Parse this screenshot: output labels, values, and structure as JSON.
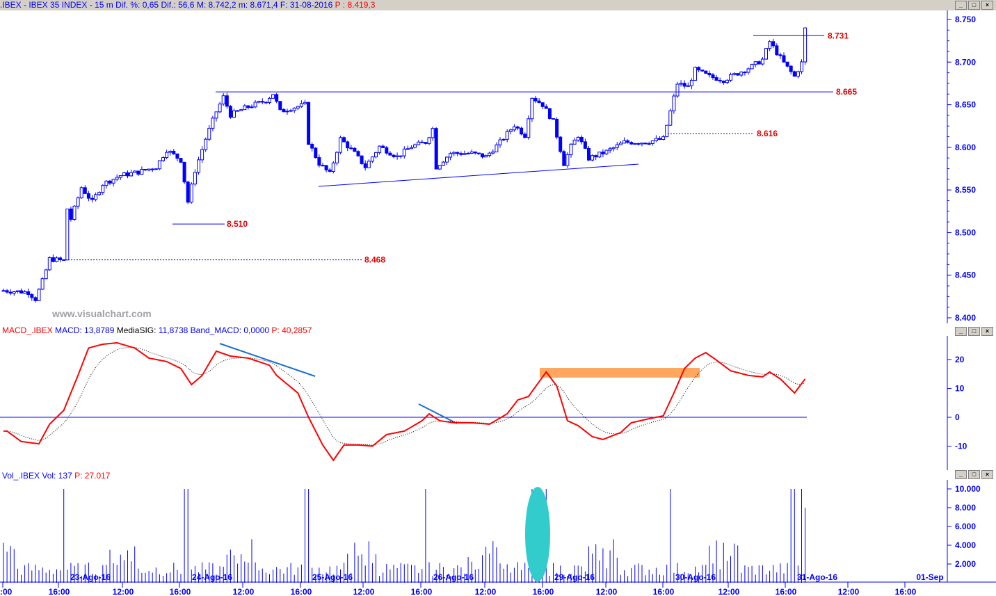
{
  "header": {
    "symbol": ".IBEX - IBEX 35 INDEX - ",
    "interval": "15 m",
    "dif_pct": "Dif. %: 0,65",
    "dif": "Dif.: 56,6",
    "max": "M: 8.742,2",
    "min": "m: 8.671,4",
    "date": "F: 31-08-2016",
    "p": "P : 8.419,3"
  },
  "macd_header": {
    "name": "MACD_.IBEX",
    "macd": "MACD: 13,8789",
    "signal_label": "MediaSIG:",
    "signal": "11,8738",
    "band": "Band_MACD: 0,0000",
    "p": "P: 40,2857"
  },
  "vol_header": {
    "name": "Vol_.IBEX",
    "vol": "Vol: 137",
    "p": "P: 27.017"
  },
  "watermark": "www.visualchart.com",
  "window_buttons": {
    "minimize": "_",
    "maximize": "□",
    "close": "×"
  },
  "colors": {
    "accent": "#0000ff",
    "macd": "#ff0000",
    "highlight_rect": "#ffa75e",
    "volume_ellipse": "#33cccc",
    "header_bg": "#d4d0c8"
  },
  "chart_data": [
    {
      "type": "candlestick",
      "title": "IBEX 35 INDEX 15 m",
      "yticks": [
        "8.750",
        "8.700",
        "8.650",
        "8.600",
        "8.550",
        "8.500",
        "8.450",
        "8.400"
      ],
      "ylim": [
        8.4,
        8.75
      ],
      "close_anchors_by_bar": [
        [
          0,
          8.432
        ],
        [
          7,
          8.43
        ],
        [
          9,
          8.422
        ],
        [
          11,
          8.443
        ],
        [
          13,
          8.469
        ],
        [
          17,
          8.467
        ],
        [
          18,
          8.528
        ],
        [
          19,
          8.516
        ],
        [
          22,
          8.553
        ],
        [
          25,
          8.536
        ],
        [
          28,
          8.557
        ],
        [
          33,
          8.567
        ],
        [
          38,
          8.571
        ],
        [
          43,
          8.577
        ],
        [
          46,
          8.597
        ],
        [
          50,
          8.585
        ],
        [
          52,
          8.536
        ],
        [
          54,
          8.573
        ],
        [
          57,
          8.61
        ],
        [
          60,
          8.642
        ],
        [
          62,
          8.659
        ],
        [
          64,
          8.638
        ],
        [
          68,
          8.646
        ],
        [
          74,
          8.655
        ],
        [
          76,
          8.663
        ],
        [
          78,
          8.642
        ],
        [
          81,
          8.646
        ],
        [
          85,
          8.65
        ],
        [
          86,
          8.606
        ],
        [
          89,
          8.581
        ],
        [
          92,
          8.569
        ],
        [
          95,
          8.61
        ],
        [
          99,
          8.593
        ],
        [
          102,
          8.577
        ],
        [
          106,
          8.601
        ],
        [
          111,
          8.589
        ],
        [
          115,
          8.601
        ],
        [
          119,
          8.606
        ],
        [
          121,
          8.622
        ],
        [
          122,
          8.577
        ],
        [
          126,
          8.593
        ],
        [
          132,
          8.593
        ],
        [
          136,
          8.589
        ],
        [
          140,
          8.606
        ],
        [
          144,
          8.626
        ],
        [
          147,
          8.614
        ],
        [
          149,
          8.659
        ],
        [
          152,
          8.65
        ],
        [
          155,
          8.63
        ],
        [
          158,
          8.581
        ],
        [
          160,
          8.601
        ],
        [
          162,
          8.614
        ],
        [
          165,
          8.587
        ],
        [
          170,
          8.595
        ],
        [
          175,
          8.606
        ],
        [
          181,
          8.606
        ],
        [
          186,
          8.61
        ],
        [
          188,
          8.642
        ],
        [
          190,
          8.675
        ],
        [
          193,
          8.671
        ],
        [
          195,
          8.691
        ],
        [
          199,
          8.683
        ],
        [
          203,
          8.679
        ],
        [
          207,
          8.687
        ],
        [
          211,
          8.695
        ],
        [
          214,
          8.703
        ],
        [
          216,
          8.724
        ],
        [
          218,
          8.711
        ],
        [
          220,
          8.699
        ],
        [
          223,
          8.683
        ],
        [
          225,
          8.699
        ],
        [
          226,
          8.739
        ]
      ],
      "levels": [
        {
          "label": "8.731",
          "value": 8.731,
          "style": "solid"
        },
        {
          "label": "8.665",
          "value": 8.665,
          "style": "solid"
        },
        {
          "label": "8.616",
          "value": 8.616,
          "style": "dotted"
        },
        {
          "label": "8.510",
          "value": 8.51,
          "style": "solid"
        },
        {
          "label": "8.468",
          "value": 8.468,
          "style": "dotted"
        }
      ]
    },
    {
      "type": "line",
      "title": "MACD",
      "yticks": [
        "20",
        "10",
        "0",
        "-10"
      ],
      "macd_anchors_by_bar": [
        [
          1,
          -4.8
        ],
        [
          5,
          -8.4
        ],
        [
          10,
          -9.2
        ],
        [
          13,
          -2.4
        ],
        [
          17,
          2.4
        ],
        [
          21,
          14.5
        ],
        [
          24,
          24
        ],
        [
          28,
          25.3
        ],
        [
          32,
          25.8
        ],
        [
          37,
          24
        ],
        [
          41,
          20.5
        ],
        [
          46,
          19.3
        ],
        [
          50,
          16.9
        ],
        [
          53,
          11.3
        ],
        [
          56,
          14.5
        ],
        [
          60,
          22.9
        ],
        [
          64,
          21.2
        ],
        [
          69,
          20.5
        ],
        [
          75,
          18
        ],
        [
          77,
          14.5
        ],
        [
          83,
          8.4
        ],
        [
          86,
          0
        ],
        [
          90,
          -9.6
        ],
        [
          93,
          -14.9
        ],
        [
          96,
          -9.6
        ],
        [
          100,
          -9.6
        ],
        [
          104,
          -10
        ],
        [
          108,
          -6
        ],
        [
          113,
          -4.8
        ],
        [
          118,
          -1.2
        ],
        [
          120,
          1.2
        ],
        [
          123,
          -1.2
        ],
        [
          127,
          -1.9
        ],
        [
          132,
          -1.9
        ],
        [
          137,
          -2.4
        ],
        [
          142,
          1.2
        ],
        [
          145,
          6
        ],
        [
          148,
          7.2
        ],
        [
          153,
          15.7
        ],
        [
          156,
          10.8
        ],
        [
          159,
          -1.2
        ],
        [
          162,
          -2.9
        ],
        [
          166,
          -6.7
        ],
        [
          169,
          -7.7
        ],
        [
          174,
          -5.3
        ],
        [
          177,
          -1.9
        ],
        [
          182,
          -0.5
        ],
        [
          186,
          0.5
        ],
        [
          189,
          8.4
        ],
        [
          192,
          16.9
        ],
        [
          195,
          20.5
        ],
        [
          198,
          22.4
        ],
        [
          201,
          19.8
        ],
        [
          205,
          16.1
        ],
        [
          210,
          14.5
        ],
        [
          214,
          14
        ],
        [
          216,
          15.7
        ],
        [
          219,
          13.3
        ],
        [
          223,
          8.4
        ],
        [
          226,
          13.3
        ]
      ]
    },
    {
      "type": "bar",
      "title": "Volume",
      "yticks": [
        "10.000",
        "8.000",
        "6.000",
        "4.000",
        "2.000"
      ],
      "volume_peaks_by_bar": [
        [
          17,
          10000
        ],
        [
          51,
          10000
        ],
        [
          52,
          10000
        ],
        [
          85,
          10000
        ],
        [
          86,
          10000
        ],
        [
          119,
          10000
        ],
        [
          149,
          10000
        ],
        [
          151,
          10000
        ],
        [
          153,
          10000
        ],
        [
          188,
          10000
        ],
        [
          222,
          10000
        ],
        [
          223,
          10000
        ],
        [
          225,
          10000
        ],
        [
          226,
          8000
        ]
      ]
    }
  ],
  "xaxis": {
    "times": [
      ":00",
      "16:00",
      "12:00",
      "16:00",
      "12:00",
      "16:00",
      "12:00",
      "16:00",
      "12:00",
      "16:00",
      "12:00",
      "16:00",
      "12:00",
      "16:00",
      "12:00",
      "16:00"
    ],
    "days": [
      "23-Ago-16",
      "24-Ago-16",
      "25-Ago-16",
      "26-Ago-16",
      "29-Ago-16",
      "30-Ago-16",
      "31-Ago-16",
      "01-Sep"
    ]
  }
}
